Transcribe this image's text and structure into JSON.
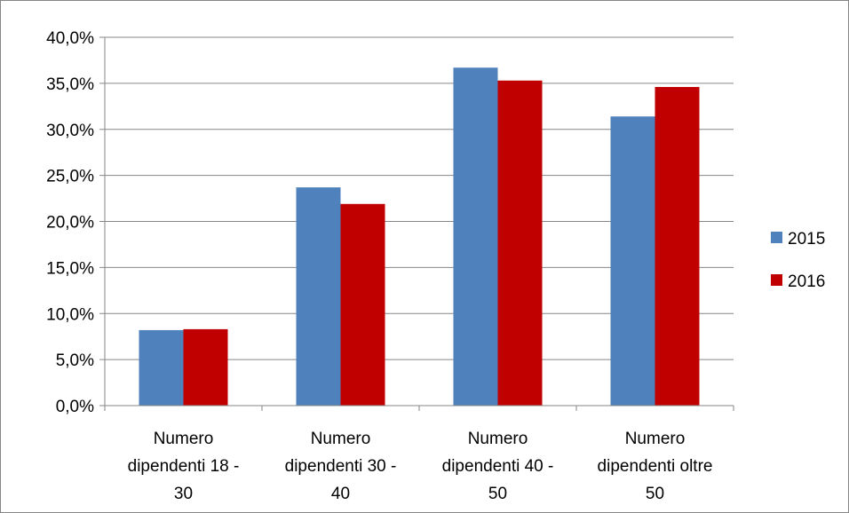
{
  "chart_data": {
    "type": "bar",
    "title": "",
    "xlabel": "",
    "ylabel": "",
    "ylim": [
      0,
      40
    ],
    "yticks": [
      "0,0%",
      "5,0%",
      "10,0%",
      "15,0%",
      "20,0%",
      "25,0%",
      "30,0%",
      "35,0%",
      "40,0%"
    ],
    "grid": true,
    "legend_position": "right",
    "categories": [
      [
        "Numero",
        "dipendenti 18 -",
        "30"
      ],
      [
        "Numero",
        "dipendenti 30 -",
        "40"
      ],
      [
        "Numero",
        "dipendenti 40 -",
        "50"
      ],
      [
        "Numero",
        "dipendenti oltre",
        "50"
      ]
    ],
    "series": [
      {
        "name": "2015",
        "color": "#4F81BD",
        "values": [
          8.2,
          23.7,
          36.7,
          31.4
        ]
      },
      {
        "name": "2016",
        "color": "#C00000",
        "values": [
          8.3,
          21.9,
          35.3,
          34.6
        ]
      }
    ]
  }
}
